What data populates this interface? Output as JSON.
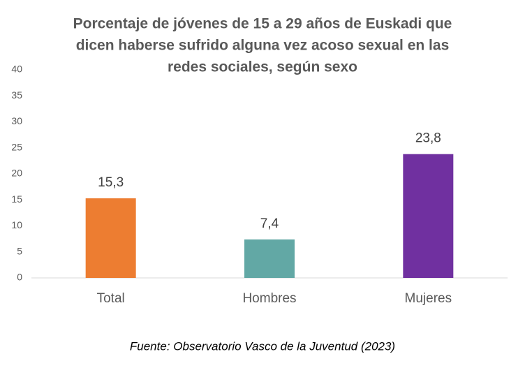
{
  "chart_data": {
    "type": "bar",
    "title": [
      "Porcentaje de jóvenes de 15 a 29 años de Euskadi que",
      "dicen haberse sufrido alguna vez acoso sexual en las",
      "redes sociales, según sexo"
    ],
    "categories": [
      "Total",
      "Hombres",
      "Mujeres"
    ],
    "values": [
      15.3,
      7.4,
      23.8
    ],
    "value_labels": [
      "15,3",
      "7,4",
      "23,8"
    ],
    "colors": [
      "#ed7d31",
      "#62a8a5",
      "#7030a0"
    ],
    "ylim": [
      0,
      40
    ],
    "yticks": [
      0,
      5,
      10,
      15,
      20,
      25,
      30,
      35,
      40
    ],
    "grid": false,
    "source": "Fuente: Observatorio Vasco de la Juventud (2023)"
  }
}
